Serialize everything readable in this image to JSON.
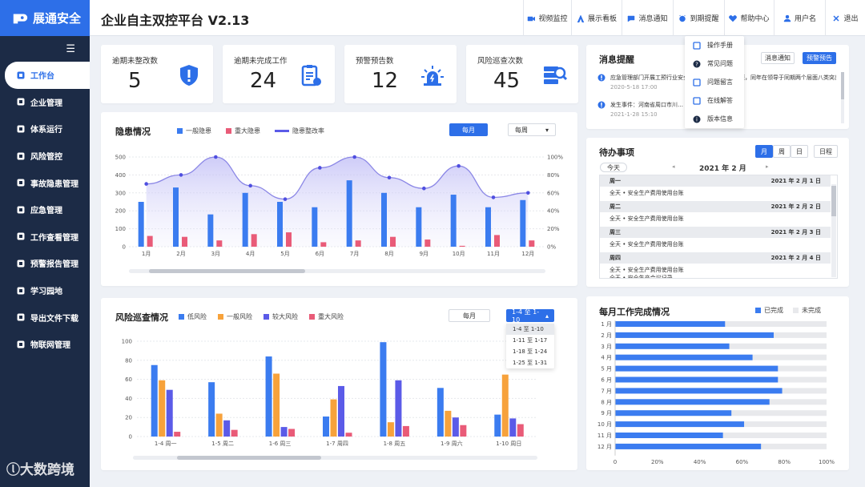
{
  "app": {
    "logo_text": "展通安全",
    "title": "企业自主双控平台 V2.13"
  },
  "topnav": [
    {
      "label": "视频监控",
      "icon": "video-camera-icon"
    },
    {
      "label": "展示看板",
      "icon": "dashboard-icon"
    },
    {
      "label": "消息通知",
      "icon": "message-icon"
    },
    {
      "label": "到期提醒",
      "icon": "alarm-clock-icon"
    },
    {
      "label": "帮助中心",
      "icon": "heart-icon"
    },
    {
      "label": "用户名",
      "icon": "user-icon"
    },
    {
      "label": "退出",
      "icon": "close-icon"
    }
  ],
  "help_menu": [
    {
      "label": "操作手册",
      "icon": "manual-icon"
    },
    {
      "label": "常见问题",
      "icon": "question-icon"
    },
    {
      "label": "问题留言",
      "icon": "edit-icon"
    },
    {
      "label": "在线解答",
      "icon": "headset-icon"
    },
    {
      "label": "版本信息",
      "icon": "info-icon"
    }
  ],
  "sidebar": [
    {
      "label": "工作台",
      "icon": "workbench-icon",
      "active": true
    },
    {
      "label": "企业管理",
      "icon": "home-icon"
    },
    {
      "label": "体系运行",
      "icon": "system-icon"
    },
    {
      "label": "风险管控",
      "icon": "fire-icon"
    },
    {
      "label": "事故隐患管理",
      "icon": "accident-icon"
    },
    {
      "label": "应急管理",
      "icon": "emergency-icon"
    },
    {
      "label": "工作查看管理",
      "icon": "calendar-icon"
    },
    {
      "label": "预警报告管理",
      "icon": "report-icon"
    },
    {
      "label": "学习园地",
      "icon": "study-icon"
    },
    {
      "label": "导出文件下载",
      "icon": "download-icon"
    },
    {
      "label": "物联网管理",
      "icon": "iot-icon"
    }
  ],
  "stats": [
    {
      "label": "逾期未整改数",
      "value": "5",
      "icon": "shield-alert-icon"
    },
    {
      "label": "逾期未完成工作",
      "value": "24",
      "icon": "clipboard-icon"
    },
    {
      "label": "预警预告数",
      "value": "12",
      "icon": "siren-icon"
    },
    {
      "label": "风险巡查次数",
      "value": "45",
      "icon": "server-search-icon"
    }
  ],
  "hazard": {
    "title": "隐患情况",
    "btn_monthly": "每月",
    "select": "每周",
    "chart_data": {
      "type": "bar",
      "categories": [
        "1月",
        "2月",
        "3月",
        "4月",
        "5月",
        "6月",
        "7月",
        "8月",
        "9月",
        "10月",
        "11月",
        "12月"
      ],
      "series": [
        {
          "name": "一般隐患",
          "type": "bar",
          "values": [
            250,
            330,
            180,
            300,
            250,
            220,
            370,
            300,
            220,
            290,
            220,
            260
          ]
        },
        {
          "name": "重大隐患",
          "type": "bar",
          "values": [
            60,
            55,
            35,
            70,
            80,
            25,
            35,
            55,
            40,
            5,
            65,
            35
          ]
        },
        {
          "name": "隐患整改率",
          "type": "line",
          "axis": "right",
          "values": [
            70,
            80,
            100,
            68,
            53,
            88,
            100,
            77,
            65,
            90,
            55,
            60
          ]
        }
      ],
      "yticks_left": [
        "0",
        "100",
        "200",
        "300",
        "400",
        "500"
      ],
      "yticks_right": [
        "0%",
        "20%",
        "40%",
        "60%",
        "80%",
        "100%"
      ],
      "ylim": [
        0,
        500
      ],
      "ylim_right": [
        0,
        100
      ],
      "colors": [
        "#3b7cf0",
        "#e95b78",
        "#5b5be8"
      ]
    }
  },
  "patrol": {
    "title": "风险巡查情况",
    "btn_monthly": "每月",
    "select": "1-4 至 1-10",
    "options": [
      "1-4 至 1-10",
      "1-11 至 1-17",
      "1-18 至 1-24",
      "1-25 至 1-31"
    ],
    "chart_data": {
      "type": "bar",
      "categories": [
        "1-4  周一",
        "1-5  周二",
        "1-6  周三",
        "1-7  周四",
        "1-8  周五",
        "1-9  周六",
        "1-10  周日"
      ],
      "series": [
        {
          "name": "低风险",
          "values": [
            75,
            57,
            84,
            21,
            99,
            51,
            23
          ]
        },
        {
          "name": "一般风险",
          "values": [
            59,
            24,
            66,
            39,
            15,
            27,
            65
          ]
        },
        {
          "name": "较大风险",
          "values": [
            49,
            17,
            10,
            53,
            59,
            20,
            19
          ]
        },
        {
          "name": "重大风险",
          "values": [
            5,
            7,
            8,
            4,
            11,
            12,
            13
          ]
        }
      ],
      "yticks": [
        "0",
        "20",
        "40",
        "60",
        "80",
        "100"
      ],
      "ylim": [
        0,
        100
      ],
      "colors": [
        "#3b7cf0",
        "#f7a23b",
        "#5b5be8",
        "#e95b78"
      ]
    }
  },
  "messages": {
    "title": "消息提醒",
    "tab_notice": "消息通知",
    "tab_warning": "预警预告",
    "items": [
      {
        "text": "应急管理部门开展工预行业安全生产大检查标准二十项，同年在领导于同期两个层面八类突出隐患问题的通知",
        "date": "2020-5-18   17:00"
      },
      {
        "text": "发生事件：河南省周口市川…                          …试",
        "date": "2021-1-28   15:10"
      }
    ]
  },
  "todo": {
    "title": "待办事项",
    "view_month": "月",
    "view_week": "周",
    "view_day": "日",
    "schedule": "日程",
    "today": "今天",
    "period": "2021 年 2 月",
    "days": [
      {
        "weekday": "周一",
        "date": "2021 年 2 月 1 日",
        "items": [
          "全天 • 安全生产费用使用台账"
        ]
      },
      {
        "weekday": "周二",
        "date": "2021 年 2 月 2 日",
        "items": [
          "全天 • 安全生产费用使用台账"
        ]
      },
      {
        "weekday": "周三",
        "date": "2021 年 2 月 3 日",
        "items": [
          "全天 • 安全生产费用使用台账"
        ]
      },
      {
        "weekday": "周四",
        "date": "2021 年 2 月 4 日",
        "items": [
          "全天 • 安全生产费用使用台账",
          "全天 • 安全生产会议记录"
        ]
      }
    ]
  },
  "monthly": {
    "title": "每月工作完成情况",
    "legend_done": "已完成",
    "legend_todo": "未完成",
    "chart_data": {
      "type": "bar",
      "orientation": "horizontal",
      "categories": [
        "1 月",
        "2 月",
        "3 月",
        "4 月",
        "5 月",
        "6 月",
        "7 月",
        "8 月",
        "9 月",
        "10 月",
        "11 月",
        "12 月"
      ],
      "series": [
        {
          "name": "已完成",
          "values": [
            52,
            75,
            54,
            65,
            77,
            77,
            79,
            73,
            55,
            61,
            51,
            69
          ]
        }
      ],
      "xticks": [
        "0",
        "20%",
        "40%",
        "60%",
        "80%",
        "100%"
      ],
      "xlim": [
        0,
        100
      ],
      "colors": [
        "#3b7cf0",
        "#e8e9ec"
      ]
    }
  },
  "watermark": "大数跨境"
}
